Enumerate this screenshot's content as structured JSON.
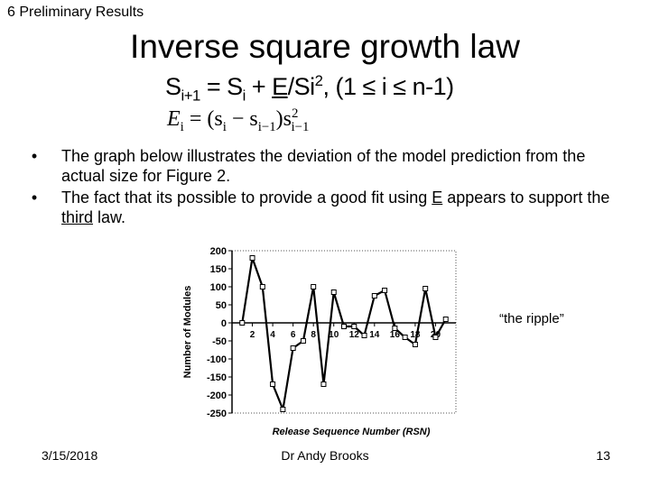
{
  "header": {
    "section": "6 Preliminary Results",
    "title": "Inverse square growth law"
  },
  "formulas": {
    "f1_a": "S",
    "f1_a_sub": "i+1",
    "f1_b": " = S",
    "f1_b_sub": "i",
    "f1_c": " + ",
    "f1_e": "E",
    "f1_d": "/Si",
    "f1_d_sup": "2",
    "f1_f": ", (1 ≤ i ≤ n-1)",
    "f2_a": "E",
    "f2_a_sub": "i",
    "f2_b": " = (s",
    "f2_b_sub": "i",
    "f2_c": " − s",
    "f2_c_sub": "i−1",
    "f2_d": ")s",
    "f2_d_sup": "2",
    "f2_d_sub": "i−1"
  },
  "bullets": {
    "b1": "The graph below illustrates the deviation of the model prediction from the actual size for Figure 2.",
    "b2_pre": "The fact that its possible to provide a good fit using ",
    "b2_e": "E",
    "b2_mid": " appears to support the ",
    "b2_third": "third",
    "b2_post": " law."
  },
  "annotation": "“the ripple”",
  "footer": {
    "date": "3/15/2018",
    "author": "Dr Andy Brooks",
    "page": "13"
  },
  "chart_data": {
    "type": "line",
    "xlabel": "Release Sequence Number (RSN)",
    "ylabel": "Number of Modules",
    "ylim": [
      -250,
      200
    ],
    "yticks": [
      200,
      150,
      100,
      50,
      0,
      -50,
      -100,
      -150,
      -200,
      -250
    ],
    "xlim": [
      0,
      22
    ],
    "xticks": [
      2,
      4,
      6,
      8,
      10,
      12,
      14,
      16,
      18,
      20
    ],
    "x_tick_labels": [
      "2",
      "4",
      "6",
      "8",
      "10",
      "12",
      "14",
      "16",
      "18",
      "20"
    ],
    "series": [
      {
        "x": [
          1,
          2,
          3,
          4,
          5,
          6,
          7,
          8,
          9,
          10,
          11,
          12,
          13,
          14,
          15,
          16,
          17,
          18,
          19,
          20,
          21
        ],
        "y": [
          0,
          180,
          100,
          -170,
          -240,
          -70,
          -50,
          100,
          -170,
          85,
          -10,
          -10,
          -35,
          75,
          90,
          -15,
          -40,
          -60,
          95,
          -40,
          10
        ]
      }
    ],
    "grid": false,
    "marker": "open-square",
    "line_color": "#000000"
  }
}
